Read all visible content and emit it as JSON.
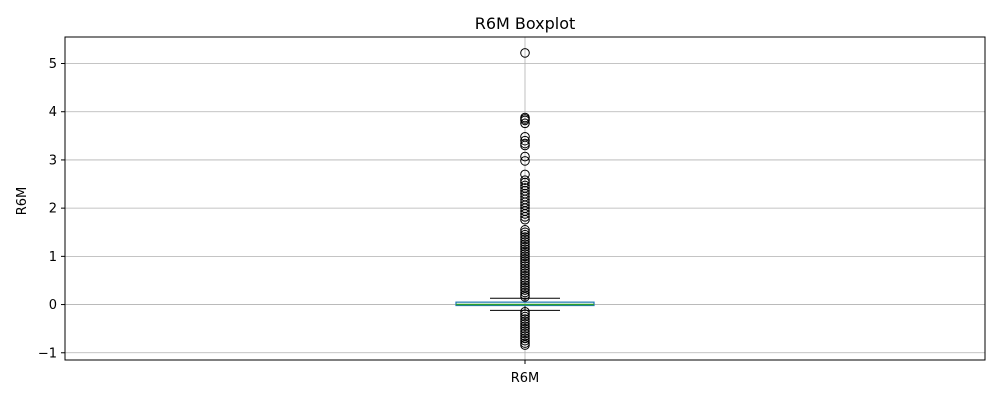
{
  "chart_data": {
    "type": "boxplot",
    "title": "R6M Boxplot",
    "ylabel": "R6M",
    "xlabel": "",
    "categories": [
      "R6M"
    ],
    "ylim": [
      -1.15,
      5.55
    ],
    "yticks": [
      -1,
      0,
      1,
      2,
      3,
      4,
      5
    ],
    "ytick_labels": [
      "−1",
      "0",
      "1",
      "2",
      "3",
      "4",
      "5"
    ],
    "grid": true,
    "box": {
      "whisker_low": -0.12,
      "q1": -0.02,
      "median": 0.0,
      "q3": 0.05,
      "whisker_high": 0.13
    },
    "outliers": [
      5.22,
      3.88,
      3.85,
      3.82,
      3.76,
      3.48,
      3.4,
      3.34,
      3.3,
      3.07,
      2.98,
      2.7,
      2.58,
      2.53,
      2.47,
      2.42,
      2.36,
      2.3,
      2.24,
      2.18,
      2.12,
      2.06,
      2.0,
      1.94,
      1.88,
      1.82,
      1.76,
      1.55,
      1.5,
      1.45,
      1.4,
      1.35,
      1.3,
      1.25,
      1.2,
      1.15,
      1.1,
      1.05,
      1.0,
      0.95,
      0.9,
      0.85,
      0.8,
      0.75,
      0.7,
      0.65,
      0.6,
      0.55,
      0.5,
      0.45,
      0.4,
      0.35,
      0.3,
      0.25,
      0.2,
      0.16,
      -0.15,
      -0.2,
      -0.25,
      -0.3,
      -0.35,
      -0.4,
      -0.45,
      -0.5,
      -0.55,
      -0.6,
      -0.65,
      -0.7,
      -0.75,
      -0.8,
      -0.84
    ],
    "colors": {
      "box": "#1f77b4",
      "median": "#2ca02c",
      "whisker": "#000000",
      "outlier": "#000000",
      "grid": "#b0b0b0"
    }
  }
}
